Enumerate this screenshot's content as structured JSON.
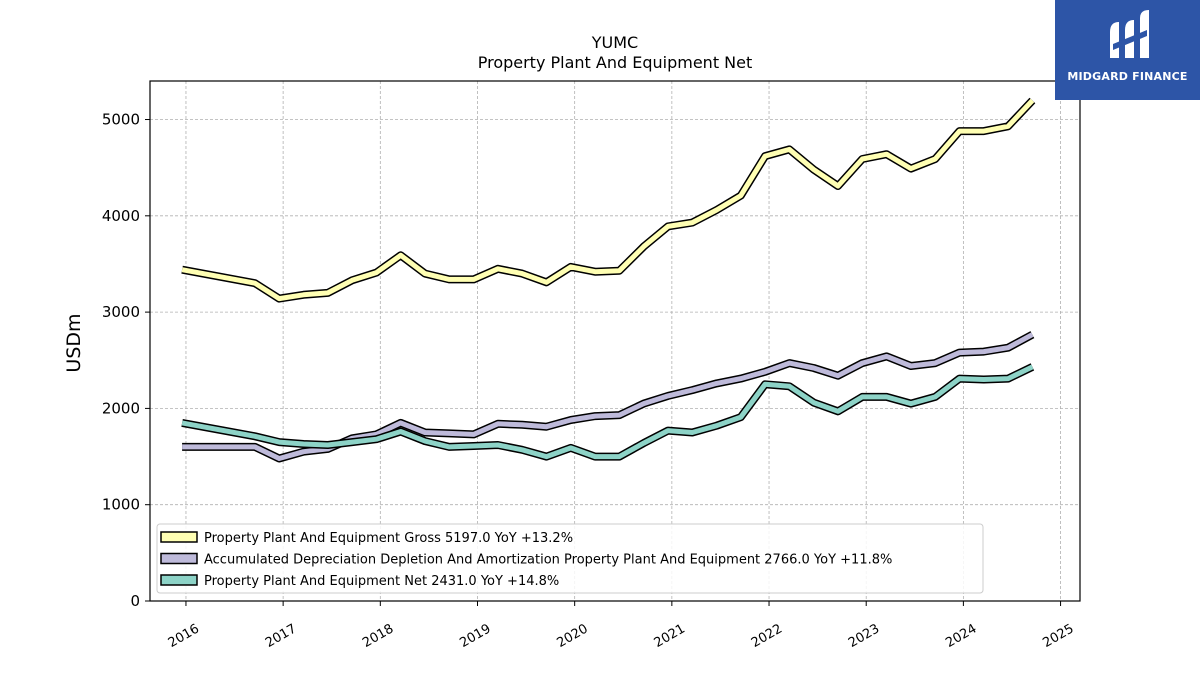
{
  "chart_data": {
    "type": "line",
    "title": "YUMC",
    "subtitle": "Property Plant And Equipment Net",
    "ylabel": "USDm",
    "ylim": [
      0,
      5400
    ],
    "yticks": [
      0,
      1000,
      2000,
      3000,
      4000,
      5000
    ],
    "xlim": [
      2015.63,
      2025.2
    ],
    "xticks": [
      "2016",
      "2017",
      "2018",
      "2019",
      "2020",
      "2021",
      "2022",
      "2023",
      "2024",
      "2025"
    ],
    "grid": true,
    "legend_position": "lower-left",
    "x": [
      2015.96,
      2016.71,
      2016.96,
      2017.21,
      2017.46,
      2017.71,
      2017.96,
      2018.21,
      2018.46,
      2018.71,
      2018.96,
      2019.21,
      2019.46,
      2019.71,
      2019.96,
      2020.21,
      2020.46,
      2020.71,
      2020.96,
      2021.21,
      2021.46,
      2021.71,
      2021.96,
      2022.21,
      2022.46,
      2022.71,
      2022.96,
      2023.21,
      2023.46,
      2023.71,
      2023.96,
      2024.21,
      2024.46,
      2024.71
    ],
    "series": [
      {
        "name": "Property Plant And Equipment Gross",
        "label": "Property Plant And Equipment Gross  5197.0 YoY +13.2%",
        "color": "#ffffb3",
        "values": [
          3440,
          3300,
          3140,
          3180,
          3200,
          3330,
          3410,
          3590,
          3400,
          3340,
          3340,
          3450,
          3400,
          3310,
          3470,
          3420,
          3430,
          3680,
          3890,
          3930,
          4060,
          4210,
          4620,
          4690,
          4480,
          4310,
          4590,
          4640,
          4490,
          4590,
          4880,
          4880,
          4930,
          5197
        ]
      },
      {
        "name": "Accumulated Depreciation Depletion And Amortization Property Plant And Equipment",
        "label": "Accumulated Depreciation Depletion And Amortization Property Plant And Equipment  2766.0 YoY +11.8%",
        "color": "#bebada",
        "values": [
          1600,
          1600,
          1480,
          1550,
          1580,
          1690,
          1730,
          1850,
          1750,
          1740,
          1730,
          1840,
          1830,
          1810,
          1880,
          1920,
          1930,
          2050,
          2130,
          2190,
          2260,
          2310,
          2380,
          2470,
          2420,
          2340,
          2470,
          2540,
          2440,
          2470,
          2580,
          2590,
          2630,
          2766
        ]
      },
      {
        "name": "Property Plant And Equipment Net",
        "label": "Property Plant And Equipment Net  2431.0 YoY +14.8%",
        "color": "#8dd3c7",
        "values": [
          1850,
          1710,
          1650,
          1630,
          1620,
          1650,
          1680,
          1760,
          1660,
          1600,
          1610,
          1620,
          1570,
          1500,
          1590,
          1500,
          1500,
          1640,
          1770,
          1750,
          1820,
          1910,
          2250,
          2230,
          2060,
          1970,
          2120,
          2120,
          2050,
          2120,
          2310,
          2300,
          2310,
          2431
        ]
      }
    ]
  },
  "brand": {
    "name": "MIDGARD FINANCE",
    "logo_color": "#2d55a7"
  }
}
